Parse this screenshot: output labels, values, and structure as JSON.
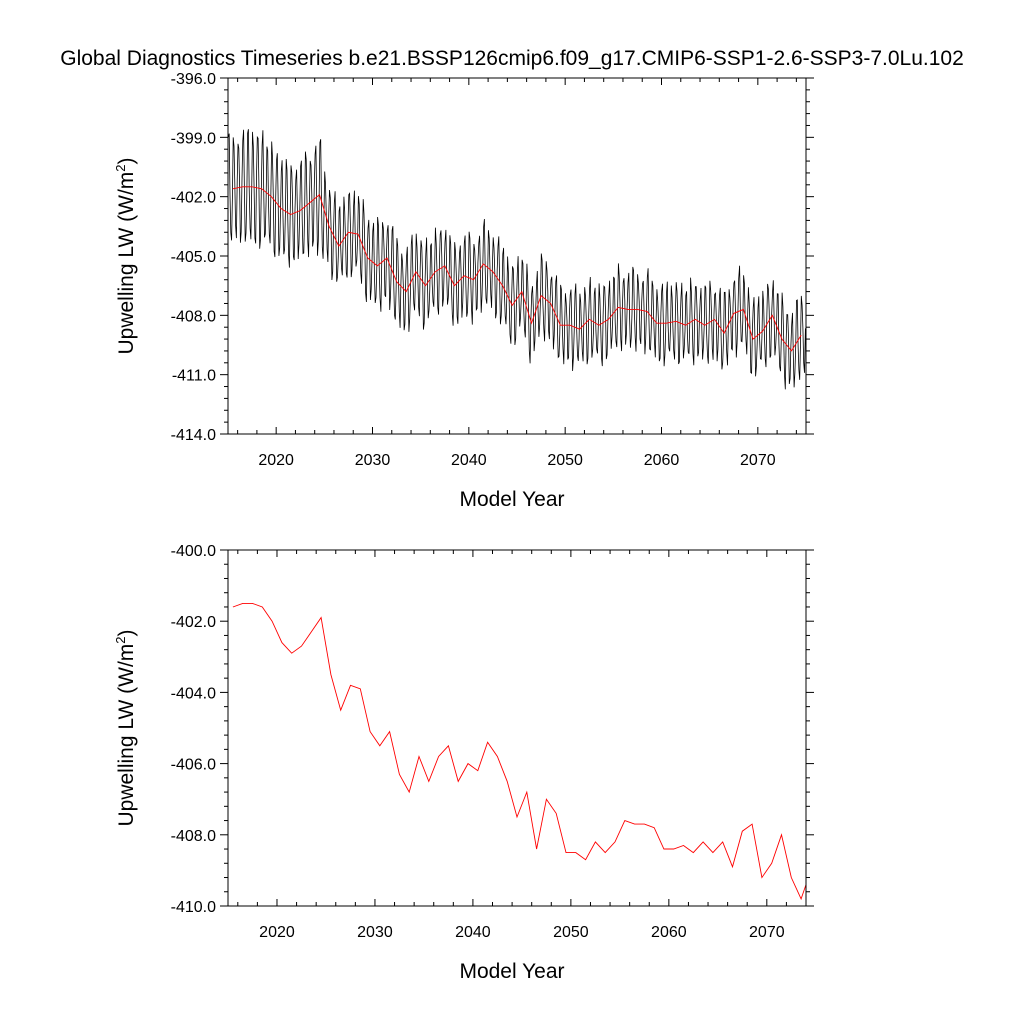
{
  "title": "Global Diagnostics Timeseries b.e21.BSSP126cmip6.f09_g17.CMIP6-SSP1-2.6-SSP3-7.0Lu.102",
  "colors": {
    "monthly": "#000000",
    "annual": "#ff0000",
    "axes": "#000000",
    "background": "#ffffff"
  },
  "chart_data": [
    {
      "type": "line",
      "panel": "top",
      "xlabel": "Model Year",
      "ylabel": "Upwelling LW (W/m",
      "ylabel_sup": "2",
      "ylabel_close": ")",
      "xlim": [
        2015,
        2075
      ],
      "ylim": [
        -414.0,
        -396.0
      ],
      "xticks": [
        2020,
        2030,
        2040,
        2050,
        2060,
        2070
      ],
      "yticks": [
        "-396.0",
        "-399.0",
        "-402.0",
        "-405.0",
        "-408.0",
        "-411.0",
        "-414.0"
      ],
      "grid": false,
      "monthly_series": {
        "color": "#000000",
        "start_year": 2015.04,
        "step_years": 0.0833,
        "amplitude_by_year": [
          3.2,
          3.3,
          3.6,
          3.4,
          3.2,
          3.2,
          3.0,
          3.0,
          3.1,
          3.4,
          2.6,
          2.5,
          2.5,
          2.5,
          2.6,
          2.6,
          2.6,
          2.6,
          2.5,
          2.5,
          2.5,
          2.4,
          2.4,
          2.4,
          2.5,
          2.5,
          2.4,
          2.4,
          2.4,
          2.4,
          2.3,
          2.3,
          2.3,
          2.3,
          2.3,
          2.3,
          2.3,
          2.3,
          2.3,
          2.3,
          2.3,
          2.3,
          2.3,
          2.3,
          2.3,
          2.3,
          2.3,
          2.3,
          2.3,
          2.3,
          2.3,
          2.3,
          2.3,
          2.3,
          2.3,
          2.3,
          2.3,
          2.4,
          2.4,
          2.4
        ]
      },
      "series": [
        {
          "color": "#ff0000",
          "x": [
            2015.5,
            2016.5,
            2017.5,
            2018.5,
            2019.5,
            2020.5,
            2021.5,
            2022.5,
            2023.5,
            2024.5,
            2025.5,
            2026.5,
            2027.5,
            2028.5,
            2029.5,
            2030.5,
            2031.5,
            2032.5,
            2033.5,
            2034.5,
            2035.5,
            2036.5,
            2037.5,
            2038.5,
            2039.5,
            2040.5,
            2041.5,
            2042.5,
            2043.5,
            2044.5,
            2045.5,
            2046.5,
            2047.5,
            2048.5,
            2049.5,
            2050.5,
            2051.5,
            2052.5,
            2053.5,
            2054.5,
            2055.5,
            2056.5,
            2057.5,
            2058.5,
            2059.5,
            2060.5,
            2061.5,
            2062.5,
            2063.5,
            2064.5,
            2065.5,
            2066.5,
            2067.5,
            2068.5,
            2069.5,
            2070.5,
            2071.5,
            2072.5,
            2073.5,
            2074.5
          ],
          "values": [
            -401.6,
            -401.5,
            -401.5,
            -401.6,
            -402.0,
            -402.6,
            -402.9,
            -402.7,
            -402.3,
            -401.9,
            -403.5,
            -404.5,
            -403.8,
            -403.9,
            -405.1,
            -405.5,
            -405.1,
            -406.3,
            -406.8,
            -405.8,
            -406.5,
            -405.8,
            -405.5,
            -406.5,
            -406.0,
            -406.2,
            -405.4,
            -405.8,
            -406.5,
            -407.5,
            -406.8,
            -408.4,
            -407.0,
            -407.4,
            -408.5,
            -408.5,
            -408.7,
            -408.2,
            -408.5,
            -408.2,
            -407.6,
            -407.7,
            -407.7,
            -407.8,
            -408.4,
            -408.4,
            -408.3,
            -408.5,
            -408.2,
            -408.5,
            -408.2,
            -408.9,
            -407.9,
            -407.7,
            -409.2,
            -408.8,
            -408.0,
            -409.2,
            -409.8,
            -409.0
          ]
        }
      ]
    },
    {
      "type": "line",
      "panel": "bottom",
      "xlabel": "Model Year",
      "ylabel": "Upwelling LW (W/m",
      "ylabel_sup": "2",
      "ylabel_close": ")",
      "xlim": [
        2015,
        2074
      ],
      "ylim": [
        -410.0,
        -400.0
      ],
      "xticks": [
        2020,
        2030,
        2040,
        2050,
        2060,
        2070
      ],
      "yticks": [
        "-400.0",
        "-402.0",
        "-404.0",
        "-406.0",
        "-408.0",
        "-410.0"
      ],
      "grid": false,
      "series": [
        {
          "color": "#ff0000",
          "x": [
            2015.5,
            2016.5,
            2017.5,
            2018.5,
            2019.5,
            2020.5,
            2021.5,
            2022.5,
            2023.5,
            2024.5,
            2025.5,
            2026.5,
            2027.5,
            2028.5,
            2029.5,
            2030.5,
            2031.5,
            2032.5,
            2033.5,
            2034.5,
            2035.5,
            2036.5,
            2037.5,
            2038.5,
            2039.5,
            2040.5,
            2041.5,
            2042.5,
            2043.5,
            2044.5,
            2045.5,
            2046.5,
            2047.5,
            2048.5,
            2049.5,
            2050.5,
            2051.5,
            2052.5,
            2053.5,
            2054.5,
            2055.5,
            2056.5,
            2057.5,
            2058.5,
            2059.5,
            2060.5,
            2061.5,
            2062.5,
            2063.5,
            2064.5,
            2065.5,
            2066.5,
            2067.5,
            2068.5,
            2069.5,
            2070.5,
            2071.5,
            2072.5,
            2073.5,
            2074.5
          ],
          "values": [
            -401.6,
            -401.5,
            -401.5,
            -401.6,
            -402.0,
            -402.6,
            -402.9,
            -402.7,
            -402.3,
            -401.9,
            -403.5,
            -404.5,
            -403.8,
            -403.9,
            -405.1,
            -405.5,
            -405.1,
            -406.3,
            -406.8,
            -405.8,
            -406.5,
            -405.8,
            -405.5,
            -406.5,
            -406.0,
            -406.2,
            -405.4,
            -405.8,
            -406.5,
            -407.5,
            -406.8,
            -408.4,
            -407.0,
            -407.4,
            -408.5,
            -408.5,
            -408.7,
            -408.2,
            -408.5,
            -408.2,
            -407.6,
            -407.7,
            -407.7,
            -407.8,
            -408.4,
            -408.4,
            -408.3,
            -408.5,
            -408.2,
            -408.5,
            -408.2,
            -408.9,
            -407.9,
            -407.7,
            -409.2,
            -408.8,
            -408.0,
            -409.2,
            -409.8,
            -409.0
          ]
        }
      ]
    }
  ]
}
